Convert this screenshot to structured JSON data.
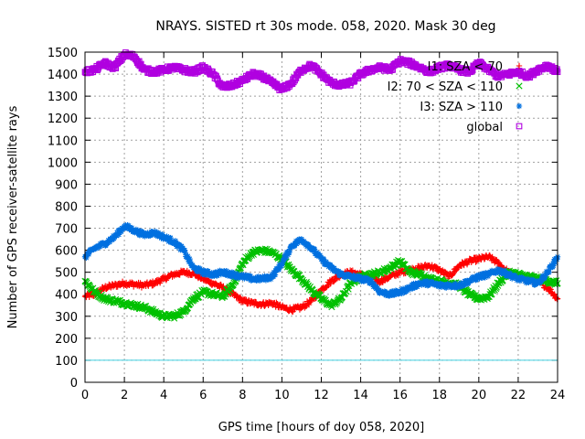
{
  "chart_data": {
    "type": "scatter",
    "title": "NRAYS. SISTED rt 30s mode. 058, 2020. Mask 30 deg",
    "xlabel": "GPS time [hours of doy 058, 2020]",
    "ylabel": "Number of GPS receiver-satellite rays",
    "xlim": [
      0,
      24
    ],
    "ylim": [
      0,
      1500
    ],
    "x_ticks": [
      0,
      2,
      4,
      6,
      8,
      10,
      12,
      14,
      16,
      18,
      20,
      22,
      24
    ],
    "y_ticks": [
      0,
      100,
      200,
      300,
      400,
      500,
      600,
      700,
      800,
      900,
      1000,
      1100,
      1200,
      1300,
      1400,
      1500
    ],
    "grid": true,
    "legend_position": "top-right",
    "reference_line": {
      "y": 100,
      "color": "#40d0e0"
    },
    "series": [
      {
        "name": "I1: SZA < 70",
        "color": "#ff0000",
        "marker": "+",
        "x": [
          0,
          0.5,
          1,
          1.5,
          2,
          2.5,
          3,
          3.5,
          4,
          4.5,
          5,
          5.5,
          6,
          6.5,
          7,
          7.5,
          8,
          8.5,
          9,
          9.5,
          10,
          10.5,
          11,
          11.5,
          12,
          12.5,
          13,
          13.5,
          14,
          14.5,
          15,
          15.5,
          16,
          16.5,
          17,
          17.5,
          18,
          18.5,
          19,
          19.5,
          20,
          20.5,
          21,
          21.5,
          22,
          22.5,
          23,
          23.5,
          24
        ],
        "values": [
          390,
          400,
          430,
          440,
          450,
          445,
          440,
          450,
          470,
          490,
          500,
          495,
          470,
          450,
          430,
          400,
          370,
          360,
          355,
          360,
          340,
          330,
          340,
          370,
          420,
          460,
          490,
          500,
          490,
          470,
          460,
          480,
          500,
          510,
          520,
          530,
          510,
          480,
          530,
          550,
          560,
          570,
          540,
          500,
          480,
          470,
          460,
          430,
          380
        ]
      },
      {
        "name": "I2: 70 < SZA < 110",
        "color": "#00c000",
        "marker": "x",
        "x": [
          0,
          0.5,
          1,
          1.5,
          2,
          2.5,
          3,
          3.5,
          4,
          4.5,
          5,
          5.5,
          6,
          6.5,
          7,
          7.5,
          8,
          8.5,
          9,
          9.5,
          10,
          10.5,
          11,
          11.5,
          12,
          12.5,
          13,
          13.5,
          14,
          14.5,
          15,
          15.5,
          16,
          16.5,
          17,
          17.5,
          18,
          18.5,
          19,
          19.5,
          20,
          20.5,
          21,
          21.5,
          22,
          22.5,
          23,
          23.5,
          24
        ],
        "values": [
          460,
          410,
          380,
          370,
          360,
          350,
          340,
          320,
          300,
          300,
          320,
          380,
          410,
          400,
          390,
          440,
          540,
          590,
          600,
          590,
          560,
          510,
          470,
          420,
          380,
          350,
          380,
          450,
          480,
          490,
          500,
          520,
          550,
          500,
          490,
          470,
          460,
          450,
          440,
          400,
          380,
          390,
          450,
          500,
          490,
          480,
          470,
          460,
          450
        ]
      },
      {
        "name": "I3: SZA > 110",
        "color": "#0070e0",
        "marker": "*",
        "x": [
          0,
          0.5,
          1,
          1.5,
          2,
          2.5,
          3,
          3.5,
          4,
          4.5,
          5,
          5.5,
          6,
          6.5,
          7,
          7.5,
          8,
          8.5,
          9,
          9.5,
          10,
          10.5,
          11,
          11.5,
          12,
          12.5,
          13,
          13.5,
          14,
          14.5,
          15,
          15.5,
          16,
          16.5,
          17,
          17.5,
          18,
          18.5,
          19,
          19.5,
          20,
          20.5,
          21,
          21.5,
          22,
          22.5,
          23,
          23.5,
          24
        ],
        "values": [
          570,
          610,
          630,
          660,
          710,
          690,
          670,
          680,
          660,
          640,
          600,
          520,
          500,
          490,
          500,
          490,
          480,
          470,
          470,
          480,
          540,
          620,
          650,
          610,
          560,
          520,
          490,
          480,
          470,
          460,
          410,
          400,
          410,
          430,
          450,
          450,
          440,
          440,
          440,
          460,
          480,
          490,
          510,
          490,
          470,
          460,
          450,
          500,
          570
        ]
      },
      {
        "name": "global",
        "color": "#b000e0",
        "marker": "square",
        "x": [
          0,
          0.5,
          1,
          1.5,
          2,
          2.5,
          3,
          3.5,
          4,
          4.5,
          5,
          5.5,
          6,
          6.5,
          7,
          7.5,
          8,
          8.5,
          9,
          9.5,
          10,
          10.5,
          11,
          11.5,
          12,
          12.5,
          13,
          13.5,
          14,
          14.5,
          15,
          15.5,
          16,
          16.5,
          17,
          17.5,
          18,
          18.5,
          19,
          19.5,
          20,
          20.5,
          21,
          21.5,
          22,
          22.5,
          23,
          23.5,
          24
        ],
        "values": [
          1410,
          1420,
          1450,
          1430,
          1490,
          1480,
          1420,
          1410,
          1420,
          1430,
          1420,
          1410,
          1430,
          1400,
          1340,
          1350,
          1370,
          1400,
          1390,
          1360,
          1330,
          1360,
          1420,
          1440,
          1400,
          1360,
          1350,
          1360,
          1400,
          1420,
          1430,
          1420,
          1460,
          1450,
          1430,
          1410,
          1430,
          1440,
          1420,
          1410,
          1450,
          1420,
          1390,
          1400,
          1410,
          1390,
          1420,
          1440,
          1410
        ]
      }
    ]
  }
}
